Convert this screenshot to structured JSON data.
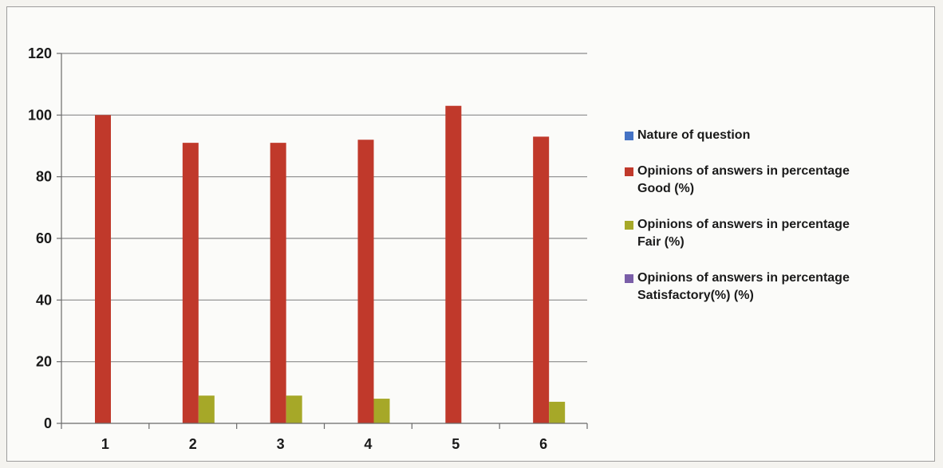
{
  "chart_data": {
    "type": "bar",
    "categories": [
      "1",
      "2",
      "3",
      "4",
      "5",
      "6"
    ],
    "series": [
      {
        "name": "Nature of question",
        "color": "#4472c4",
        "values": [
          0,
          0,
          0,
          0,
          0,
          0
        ]
      },
      {
        "name": "Opinions of answers in percentage\nGood (%)",
        "color": "#c0392b",
        "values": [
          100,
          91,
          91,
          92,
          103,
          93
        ]
      },
      {
        "name": "Opinions of answers in percentage\nFair  (%)",
        "color": "#a6a828",
        "values": [
          0,
          9,
          9,
          8,
          0,
          7
        ]
      },
      {
        "name": "Opinions of answers in percentage\nSatisfactory(%) (%)",
        "color": "#7a5ea8",
        "values": [
          0,
          0,
          0,
          0,
          0,
          0
        ]
      }
    ],
    "yticks": [
      "0",
      "20",
      "40",
      "60",
      "80",
      "100",
      "120"
    ],
    "ylim": [
      0,
      120
    ],
    "grid": true,
    "legend_position": "right",
    "title": "",
    "xlabel": "",
    "ylabel": ""
  }
}
